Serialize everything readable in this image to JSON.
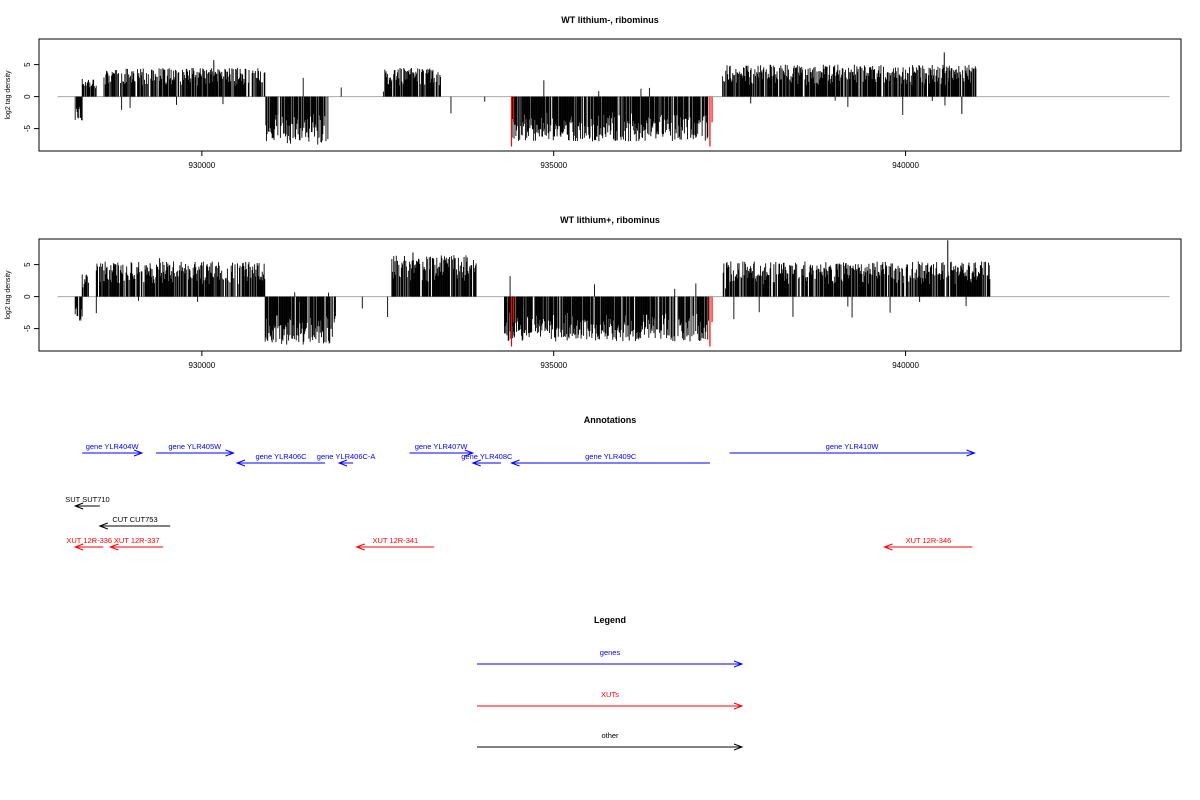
{
  "chart_data": [
    {
      "type": "bar",
      "title": "WT lithium-, ribominus",
      "ylabel": "log2 tag density",
      "xlim": [
        927700,
        943900
      ],
      "ylim": [
        -8.5,
        9
      ],
      "x_ticks": [
        930000,
        935000,
        940000
      ],
      "y_ticks": [
        -5,
        0,
        5
      ],
      "grid": false,
      "sense_segments": [
        {
          "from": 928300,
          "to": 928500,
          "max": 3.0
        },
        {
          "from": 928600,
          "to": 930900,
          "max": 4.5
        },
        {
          "from": 932600,
          "to": 933400,
          "max": 4.5
        },
        {
          "from": 937400,
          "to": 941000,
          "max": 5.0
        }
      ],
      "antisense_segments": [
        {
          "from": 928200,
          "to": 928300,
          "max": 4.0
        },
        {
          "from": 930900,
          "to": 931800,
          "max": 7.5
        },
        {
          "from": 934400,
          "to": 937200,
          "max": 7.0
        }
      ],
      "peaks": [
        {
          "x": 930170,
          "y": 5.7
        },
        {
          "x": 940550,
          "y": 6.9
        },
        {
          "x": 940800,
          "y": -2.7
        }
      ],
      "highlighted_bars": [
        {
          "x": 934400,
          "y": -7.8
        },
        {
          "x": 934430,
          "y": -4.0
        },
        {
          "x": 937220,
          "y": -7.8
        },
        {
          "x": 937250,
          "y": -4.0
        }
      ]
    },
    {
      "type": "bar",
      "title": "WT lithium+, ribominus",
      "ylabel": "log2 tag density",
      "xlim": [
        927700,
        943900
      ],
      "ylim": [
        -8.5,
        9
      ],
      "x_ticks": [
        930000,
        935000,
        940000
      ],
      "y_ticks": [
        -5,
        0,
        5
      ],
      "grid": false,
      "sense_segments": [
        {
          "from": 928300,
          "to": 928400,
          "max": 3.5
        },
        {
          "from": 928500,
          "to": 930900,
          "max": 5.5
        },
        {
          "from": 932700,
          "to": 933900,
          "max": 6.5
        },
        {
          "from": 937400,
          "to": 941200,
          "max": 5.5
        }
      ],
      "antisense_segments": [
        {
          "from": 928200,
          "to": 928300,
          "max": 4.0
        },
        {
          "from": 930900,
          "to": 931900,
          "max": 7.5
        },
        {
          "from": 934300,
          "to": 937200,
          "max": 7.0
        }
      ],
      "peaks": [
        {
          "x": 940600,
          "y": 8.8
        },
        {
          "x": 933000,
          "y": 6.9
        },
        {
          "x": 929400,
          "y": 6.0
        }
      ],
      "highlighted_bars": [
        {
          "x": 934400,
          "y": -7.8
        },
        {
          "x": 934430,
          "y": -4.0
        },
        {
          "x": 937220,
          "y": -7.8
        },
        {
          "x": 937250,
          "y": -4.0
        }
      ]
    }
  ],
  "annotations": {
    "title": "Annotations",
    "features": [
      {
        "label": "gene YLR404W",
        "start": 928300,
        "end": 929150,
        "strand": "+",
        "kind": "gene",
        "row": 1
      },
      {
        "label": "gene YLR405W",
        "start": 929350,
        "end": 930450,
        "strand": "+",
        "kind": "gene",
        "row": 1
      },
      {
        "label": "gene YLR406C",
        "start": 930500,
        "end": 931750,
        "strand": "-",
        "kind": "gene",
        "row": 2
      },
      {
        "label": "gene YLR406C-A",
        "start": 931950,
        "end": 932150,
        "strand": "-",
        "kind": "gene",
        "row": 2
      },
      {
        "label": "gene YLR407W",
        "start": 932950,
        "end": 933850,
        "strand": "+",
        "kind": "gene",
        "row": 1
      },
      {
        "label": "gene YLR408C",
        "start": 933850,
        "end": 934250,
        "strand": "-",
        "kind": "gene",
        "row": 2
      },
      {
        "label": "gene YLR409C",
        "start": 934400,
        "end": 937220,
        "strand": "-",
        "kind": "gene",
        "row": 2
      },
      {
        "label": "gene YLR410W",
        "start": 937500,
        "end": 940980,
        "strand": "+",
        "kind": "gene",
        "row": 1
      },
      {
        "label": "SUT SUT710",
        "start": 928200,
        "end": 928550,
        "strand": "-",
        "kind": "other",
        "row": 3
      },
      {
        "label": "CUT CUT753",
        "start": 928550,
        "end": 929550,
        "strand": "-",
        "kind": "other",
        "row": 4
      },
      {
        "label": "XUT 12R-336",
        "start": 928200,
        "end": 928600,
        "strand": "-",
        "kind": "xut",
        "row": 5
      },
      {
        "label": "XUT 12R-337",
        "start": 928700,
        "end": 929450,
        "strand": "-",
        "kind": "xut",
        "row": 5
      },
      {
        "label": "XUT 12R-341",
        "start": 932200,
        "end": 933300,
        "strand": "-",
        "kind": "xut",
        "row": 5
      },
      {
        "label": "XUT 12R-346",
        "start": 939700,
        "end": 940950,
        "strand": "-",
        "kind": "xut",
        "row": 5
      }
    ]
  },
  "legend": {
    "title": "Legend",
    "items": [
      {
        "label": "genes",
        "color": "#0000ff"
      },
      {
        "label": "XUTs",
        "color": "#ff0000"
      },
      {
        "label": "other",
        "color": "#000000"
      }
    ]
  },
  "colors": {
    "gene": "#0000ff",
    "xut": "#ff0000",
    "other": "#000000",
    "highlight": "#ff0000",
    "bar": "#000000",
    "baseline": "#aaaaaa"
  }
}
